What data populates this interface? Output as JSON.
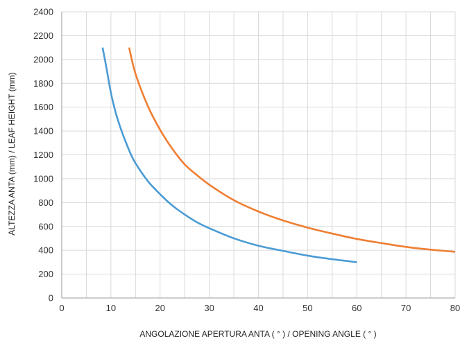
{
  "chart_data": {
    "type": "line",
    "title": "",
    "xlabel": {
      "main": "ANGOLAZIONE APERTURA ANTA ( ° )",
      "secondary": " / OPENING ANGLE ( ° )"
    },
    "ylabel": {
      "main": "ALTEZZA ANTA (mm)",
      "secondary": " / LEAF HEIGHT (mm)"
    },
    "xlim": [
      0,
      80
    ],
    "ylim": [
      0,
      2400
    ],
    "x_ticks": [
      0,
      10,
      20,
      30,
      40,
      50,
      60,
      70,
      80
    ],
    "y_ticks": [
      0,
      200,
      400,
      600,
      800,
      1000,
      1200,
      1400,
      1600,
      1800,
      2000,
      2200,
      2400
    ],
    "grid": true,
    "legend": "none",
    "series": [
      {
        "color": "#4a9bd4",
        "x": [
          8.3,
          9,
          10,
          11,
          12,
          13,
          14,
          15,
          17.5,
          20,
          22.5,
          25,
          27.5,
          30,
          35,
          40,
          45,
          50,
          55,
          60
        ],
        "y": [
          2100,
          1950,
          1720,
          1550,
          1420,
          1310,
          1210,
          1130,
          980,
          870,
          775,
          700,
          635,
          585,
          500,
          438,
          395,
          355,
          325,
          300
        ]
      },
      {
        "color": "#ee7e32",
        "x": [
          13.7,
          15,
          17.5,
          20,
          22.5,
          25,
          27.5,
          30,
          35,
          40,
          45,
          50,
          55,
          60,
          65,
          70,
          75,
          80
        ],
        "y": [
          2100,
          1880,
          1610,
          1410,
          1250,
          1120,
          1030,
          950,
          820,
          725,
          650,
          590,
          540,
          495,
          460,
          428,
          405,
          387
        ]
      }
    ]
  }
}
